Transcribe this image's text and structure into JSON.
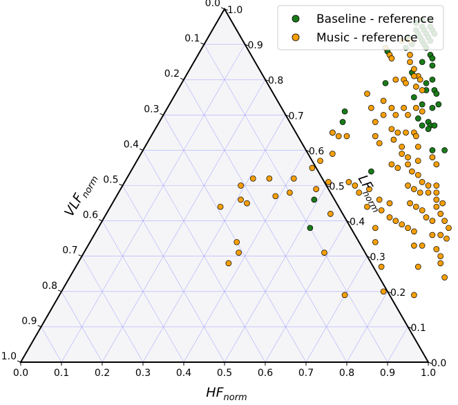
{
  "chart_data": {
    "type": "scatter",
    "subtype": "ternary",
    "grid": true,
    "legend_placement": "top-right",
    "axes": {
      "bottom": {
        "name": "HF",
        "sub": "norm",
        "ticks": [
          "0.0",
          "0.1",
          "0.2",
          "0.3",
          "0.4",
          "0.5",
          "0.6",
          "0.7",
          "0.8",
          "0.9",
          "1.0"
        ]
      },
      "left": {
        "name": "VLF",
        "sub": "norm",
        "ticks": [
          "0.0",
          "0.1",
          "0.2",
          "0.3",
          "0.4",
          "0.5",
          "0.6",
          "0.7",
          "0.8",
          "0.9",
          "1.0"
        ]
      },
      "right": {
        "name": "LF",
        "sub": "norm",
        "ticks": [
          "0.0",
          "0.1",
          "0.2",
          "0.3",
          "0.4",
          "0.5",
          "0.6",
          "0.7",
          "0.8",
          "0.9",
          "1.0"
        ]
      }
    },
    "series": [
      {
        "name": "Baseline - reference",
        "color": "#1a7a1a",
        "points": [
          [
            0.5,
            0.97
          ],
          [
            0.52,
            0.97
          ],
          [
            0.49,
            0.96
          ],
          [
            0.51,
            0.95
          ],
          [
            0.53,
            0.95
          ],
          [
            0.5,
            0.94
          ],
          [
            0.52,
            0.94
          ],
          [
            0.54,
            0.94
          ],
          [
            0.51,
            0.93
          ],
          [
            0.53,
            0.93
          ],
          [
            0.55,
            0.93
          ],
          [
            0.49,
            0.92
          ],
          [
            0.52,
            0.92
          ],
          [
            0.54,
            0.92
          ],
          [
            0.55,
            0.91
          ],
          [
            0.53,
            0.91
          ],
          [
            0.51,
            0.9
          ],
          [
            0.54,
            0.9
          ],
          [
            0.5,
            0.89
          ],
          [
            0.55,
            0.89
          ],
          [
            0.46,
            0.88
          ],
          [
            0.57,
            0.87
          ],
          [
            0.58,
            0.86
          ],
          [
            0.56,
            0.85
          ],
          [
            0.59,
            0.84
          ],
          [
            0.55,
            0.82
          ],
          [
            0.61,
            0.8
          ],
          [
            0.6,
            0.79
          ],
          [
            0.5,
            0.79
          ],
          [
            0.63,
            0.77
          ],
          [
            0.61,
            0.77
          ],
          [
            0.64,
            0.76
          ],
          [
            0.66,
            0.73
          ],
          [
            0.59,
            0.75
          ],
          [
            0.62,
            0.73
          ],
          [
            0.65,
            0.72
          ],
          [
            0.63,
            0.69
          ],
          [
            0.66,
            0.68
          ],
          [
            0.67,
            0.67
          ],
          [
            0.68,
            0.67
          ],
          [
            0.65,
            0.67
          ],
          [
            0.67,
            0.66
          ],
          [
            0.44,
            0.71
          ],
          [
            0.45,
            0.68
          ],
          [
            0.44,
            0.65
          ],
          [
            0.71,
            0.6
          ],
          [
            0.74,
            0.6
          ],
          [
            0.59,
            0.54
          ],
          [
            0.49,
            0.46
          ],
          [
            0.52,
            0.38
          ]
        ]
      },
      {
        "name": "Music - reference",
        "color": "#f59f0a",
        "points": [
          [
            0.48,
            0.91
          ],
          [
            0.5,
            0.91
          ],
          [
            0.45,
            0.89
          ],
          [
            0.47,
            0.87
          ],
          [
            0.48,
            0.86
          ],
          [
            0.52,
            0.87
          ],
          [
            0.53,
            0.85
          ],
          [
            0.55,
            0.83
          ],
          [
            0.57,
            0.81
          ],
          [
            0.56,
            0.81
          ],
          [
            0.58,
            0.8
          ],
          [
            0.52,
            0.8
          ],
          [
            0.54,
            0.8
          ],
          [
            0.55,
            0.79
          ],
          [
            0.58,
            0.78
          ],
          [
            0.6,
            0.77
          ],
          [
            0.47,
            0.76
          ],
          [
            0.52,
            0.74
          ],
          [
            0.55,
            0.72
          ],
          [
            0.58,
            0.72
          ],
          [
            0.61,
            0.72
          ],
          [
            0.63,
            0.71
          ],
          [
            0.5,
            0.72
          ],
          [
            0.54,
            0.7
          ],
          [
            0.57,
            0.7
          ],
          [
            0.6,
            0.7
          ],
          [
            0.53,
            0.68
          ],
          [
            0.58,
            0.66
          ],
          [
            0.6,
            0.65
          ],
          [
            0.62,
            0.65
          ],
          [
            0.64,
            0.65
          ],
          [
            0.65,
            0.64
          ],
          [
            0.55,
            0.64
          ],
          [
            0.57,
            0.62
          ],
          [
            0.6,
            0.63
          ],
          [
            0.63,
            0.61
          ],
          [
            0.67,
            0.61
          ],
          [
            0.44,
            0.65
          ],
          [
            0.46,
            0.64
          ],
          [
            0.48,
            0.64
          ],
          [
            0.64,
            0.59
          ],
          [
            0.66,
            0.58
          ],
          [
            0.69,
            0.57
          ],
          [
            0.72,
            0.58
          ],
          [
            0.74,
            0.56
          ],
          [
            0.47,
            0.59
          ],
          [
            0.45,
            0.57
          ],
          [
            0.63,
            0.56
          ],
          [
            0.65,
            0.55
          ],
          [
            0.67,
            0.56
          ],
          [
            0.69,
            0.54
          ],
          [
            0.71,
            0.53
          ],
          [
            0.73,
            0.51
          ],
          [
            0.75,
            0.5
          ],
          [
            0.77,
            0.5
          ],
          [
            0.76,
            0.48
          ],
          [
            0.78,
            0.48
          ],
          [
            0.79,
            0.46
          ],
          [
            0.81,
            0.45
          ],
          [
            0.7,
            0.5
          ],
          [
            0.72,
            0.49
          ],
          [
            0.74,
            0.48
          ],
          [
            0.8,
            0.44
          ],
          [
            0.82,
            0.42
          ],
          [
            0.84,
            0.4
          ],
          [
            0.86,
            0.38
          ],
          [
            0.85,
            0.36
          ],
          [
            0.87,
            0.35
          ],
          [
            0.86,
            0.32
          ],
          [
            0.88,
            0.3
          ],
          [
            0.89,
            0.28
          ],
          [
            0.92,
            0.24
          ],
          [
            0.73,
            0.45
          ],
          [
            0.75,
            0.44
          ],
          [
            0.77,
            0.43
          ],
          [
            0.79,
            0.41
          ],
          [
            0.81,
            0.4
          ],
          [
            0.7,
            0.41
          ],
          [
            0.72,
            0.4
          ],
          [
            0.74,
            0.39
          ],
          [
            0.76,
            0.38
          ],
          [
            0.78,
            0.37
          ],
          [
            0.83,
            0.36
          ],
          [
            0.8,
            0.33
          ],
          [
            0.82,
            0.33
          ],
          [
            0.67,
            0.43
          ],
          [
            0.68,
            0.38
          ],
          [
            0.7,
            0.34
          ],
          [
            0.65,
            0.46
          ],
          [
            0.68,
            0.45
          ],
          [
            0.57,
            0.5
          ],
          [
            0.59,
            0.48
          ],
          [
            0.61,
            0.49
          ],
          [
            0.55,
            0.51
          ],
          [
            0.5,
            0.51
          ],
          [
            0.48,
            0.49
          ],
          [
            0.44,
            0.55
          ],
          [
            0.41,
            0.52
          ],
          [
            0.42,
            0.48
          ],
          [
            0.39,
            0.47
          ],
          [
            0.35,
            0.52
          ],
          [
            0.33,
            0.45
          ],
          [
            0.36,
            0.34
          ],
          [
            0.27,
            0.44
          ],
          [
            0.37,
            0.28
          ],
          [
            0.31,
            0.52
          ],
          [
            0.31,
            0.46
          ],
          [
            0.29,
            0.5
          ],
          [
            0.38,
            0.31
          ],
          [
            0.55,
            0.42
          ],
          [
            0.7,
            0.19
          ],
          [
            0.87,
            0.19
          ],
          [
            0.75,
            0.27
          ],
          [
            0.84,
            0.27
          ],
          [
            0.59,
            0.31
          ],
          [
            0.63,
            0.44
          ],
          [
            0.79,
            0.2
          ]
        ]
      }
    ]
  }
}
